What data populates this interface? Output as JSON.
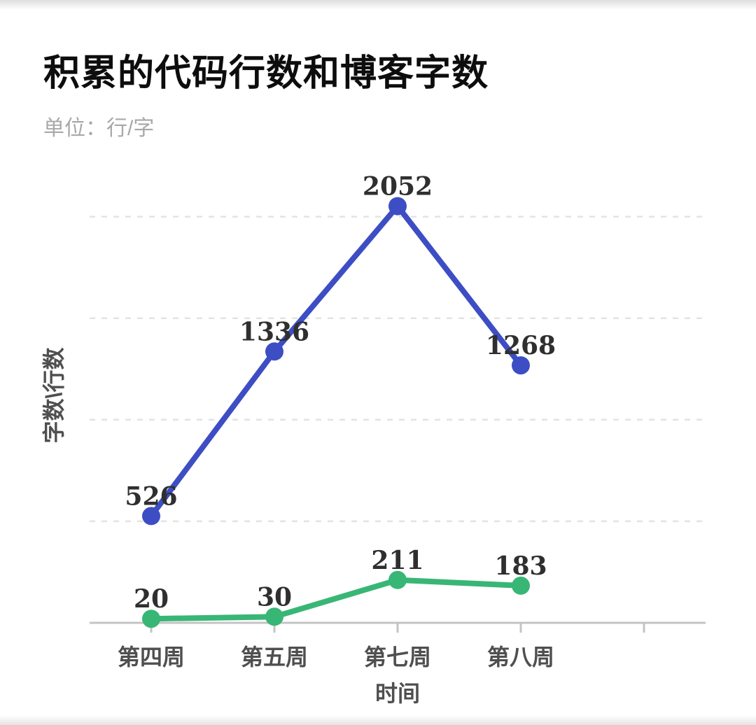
{
  "page": {
    "title": "积累的代码行数和博客字数",
    "subtitle": "单位：行/字"
  },
  "chart_data": {
    "type": "line",
    "title": "积累的代码行数和博客字数",
    "subtitle_unit": "单位：行/字",
    "categories": [
      "第四周",
      "第五周",
      "第七周",
      "第八周"
    ],
    "series": [
      {
        "id": "blue-line",
        "color": "#3D4EC4",
        "values": [
          526,
          1336,
          2052,
          1268
        ]
      },
      {
        "id": "green-line",
        "color": "#38B676",
        "values": [
          20,
          30,
          211,
          183
        ]
      }
    ],
    "xlabel": "时间",
    "ylabel": "字数\\行数",
    "ylim": [
      0,
      2240
    ],
    "gridline_values": [
      500,
      1000,
      1500,
      2000
    ],
    "grid": "horizontal-dashed",
    "legend": "none",
    "x_axis_total_tick_slots": 5
  },
  "colors": {
    "title_text": "#0D0D0D",
    "subtitle_text": "#A8A8A8",
    "axis_line": "#C4C4C4",
    "grid_line": "#E3E3E3",
    "tick_label": "#4F4F4F",
    "value_label": "#2F2F2F",
    "series_blue": "#3D4EC4",
    "series_green": "#38B676"
  }
}
